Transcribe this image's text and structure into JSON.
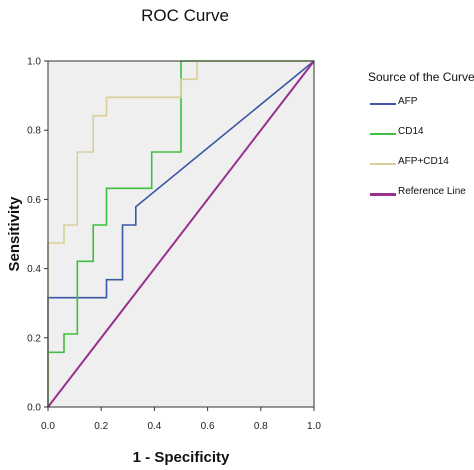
{
  "chart_data": {
    "type": "line",
    "title": "ROC Curve",
    "xlabel": "1 - Specificity",
    "ylabel": "Sensitivity",
    "xlim": [
      0,
      1
    ],
    "ylim": [
      0,
      1
    ],
    "x_ticks": [
      "0.0",
      "0.2",
      "0.4",
      "0.6",
      "0.8",
      "1.0"
    ],
    "y_ticks": [
      "0.0",
      "0.2",
      "0.4",
      "0.6",
      "0.8",
      "1.0"
    ],
    "grid": false,
    "plot_background": "#efefef",
    "legend": {
      "title": "Source of the Curve",
      "placement": "right"
    },
    "series": [
      {
        "name": "AFP",
        "color": "#3b57a6",
        "x": [
          0,
          0,
          0.22,
          0.22,
          0.28,
          0.28,
          0.33,
          0.33,
          1.0
        ],
        "y": [
          0,
          0.316,
          0.316,
          0.368,
          0.368,
          0.526,
          0.526,
          0.579,
          1.0
        ]
      },
      {
        "name": "CD14",
        "color": "#3fbf3f",
        "x": [
          0,
          0,
          0.06,
          0.06,
          0.11,
          0.11,
          0.17,
          0.17,
          0.22,
          0.22,
          0.28,
          0.28,
          0.39,
          0.39,
          0.5,
          0.5,
          0.5,
          0.5,
          1.0
        ],
        "y": [
          0,
          0.158,
          0.158,
          0.211,
          0.211,
          0.421,
          0.421,
          0.526,
          0.526,
          0.632,
          0.632,
          0.632,
          0.632,
          0.737,
          0.737,
          0.737,
          0.947,
          1.0,
          1.0
        ]
      },
      {
        "name": "AFP+CD14",
        "color": "#d8cf9a",
        "x": [
          0,
          0,
          0.06,
          0.06,
          0.11,
          0.11,
          0.17,
          0.17,
          0.22,
          0.22,
          0.5,
          0.5,
          0.56,
          0.56,
          1.0
        ],
        "y": [
          0,
          0.474,
          0.474,
          0.526,
          0.526,
          0.737,
          0.737,
          0.842,
          0.842,
          0.895,
          0.895,
          0.947,
          0.947,
          1.0,
          1.0
        ]
      },
      {
        "name": "Reference Line",
        "color": "#9b2f8f",
        "x": [
          0,
          1
        ],
        "y": [
          0,
          1
        ]
      }
    ]
  }
}
